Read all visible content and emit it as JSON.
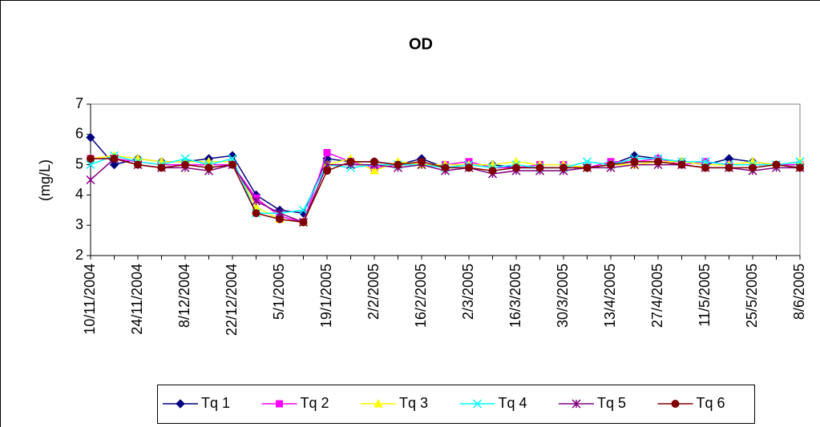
{
  "chart_data": {
    "type": "line",
    "title": "OD",
    "y_label": "(mg/L)",
    "categories": [
      "10/11/2004",
      null,
      "24/11/2004",
      null,
      "8/12/2004",
      null,
      "22/12/2004",
      null,
      "5/1/2005",
      null,
      "19/1/2005",
      null,
      "2/2/2005",
      null,
      "16/2/2005",
      null,
      "2/3/2005",
      null,
      "16/3/2005",
      null,
      "30/3/2005",
      null,
      "13/4/2005",
      null,
      "27/4/2005",
      null,
      "11/5/2005",
      null,
      "25/5/2005",
      null,
      "8/6/2005"
    ],
    "ylim": [
      2,
      7
    ],
    "yticks": [
      2,
      3,
      4,
      5,
      6,
      7
    ],
    "grid": false,
    "legend": "bottom",
    "series": [
      {
        "name": "Tq 1",
        "color": "#000080",
        "marker": "diamond",
        "values": [
          5.9,
          5.0,
          5.2,
          5.1,
          5.1,
          5.2,
          5.3,
          4.0,
          3.5,
          3.4,
          5.2,
          5.1,
          5.1,
          5.0,
          5.2,
          4.9,
          5.0,
          5.0,
          4.9,
          4.9,
          4.9,
          4.9,
          5.0,
          5.3,
          5.2,
          5.1,
          5.0,
          5.2,
          5.1,
          5.0,
          5.0
        ]
      },
      {
        "name": "Tq 2",
        "color": "#ff00ff",
        "marker": "square",
        "values": [
          5.2,
          5.2,
          5.1,
          5.0,
          5.0,
          5.0,
          5.0,
          3.9,
          3.3,
          3.1,
          5.4,
          5.1,
          4.9,
          5.0,
          5.0,
          5.0,
          5.1,
          4.9,
          4.9,
          5.0,
          5.0,
          4.9,
          5.1,
          5.1,
          5.2,
          5.0,
          5.1,
          5.0,
          5.0,
          5.0,
          5.0
        ]
      },
      {
        "name": "Tq 3",
        "color": "#ffff00",
        "marker": "triangle",
        "values": [
          5.2,
          5.3,
          5.2,
          5.1,
          5.1,
          5.1,
          5.1,
          3.6,
          3.2,
          3.1,
          5.0,
          5.2,
          4.8,
          5.1,
          5.0,
          5.0,
          5.0,
          5.0,
          5.1,
          5.0,
          5.0,
          4.9,
          5.0,
          5.0,
          5.1,
          5.1,
          5.0,
          5.0,
          5.1,
          5.0,
          5.1
        ]
      },
      {
        "name": "Tq 4",
        "color": "#00ffff",
        "marker": "x",
        "values": [
          5.0,
          5.3,
          5.1,
          5.0,
          5.2,
          5.0,
          5.2,
          3.4,
          3.4,
          3.5,
          5.0,
          4.9,
          5.0,
          5.0,
          5.0,
          4.9,
          5.0,
          4.9,
          5.0,
          4.9,
          4.9,
          5.1,
          5.0,
          5.2,
          5.2,
          5.1,
          5.1,
          5.0,
          5.0,
          5.0,
          5.1
        ]
      },
      {
        "name": "Tq 5",
        "color": "#800080",
        "marker": "star",
        "values": [
          4.5,
          5.2,
          5.0,
          4.9,
          4.9,
          4.8,
          5.0,
          3.8,
          3.4,
          3.1,
          5.0,
          5.0,
          5.0,
          4.9,
          5.0,
          4.8,
          4.9,
          4.7,
          4.8,
          4.8,
          4.8,
          4.9,
          4.9,
          5.0,
          5.0,
          5.0,
          4.9,
          4.9,
          4.8,
          4.9,
          4.9
        ]
      },
      {
        "name": "Tq 6",
        "color": "#800000",
        "marker": "circle",
        "values": [
          5.2,
          5.2,
          5.0,
          4.9,
          5.0,
          4.9,
          5.0,
          3.4,
          3.2,
          3.1,
          4.8,
          5.1,
          5.1,
          5.0,
          5.1,
          4.9,
          4.9,
          4.8,
          4.9,
          4.9,
          4.9,
          4.9,
          5.0,
          5.1,
          5.1,
          5.0,
          4.9,
          4.9,
          4.9,
          5.0,
          4.9
        ]
      }
    ]
  }
}
